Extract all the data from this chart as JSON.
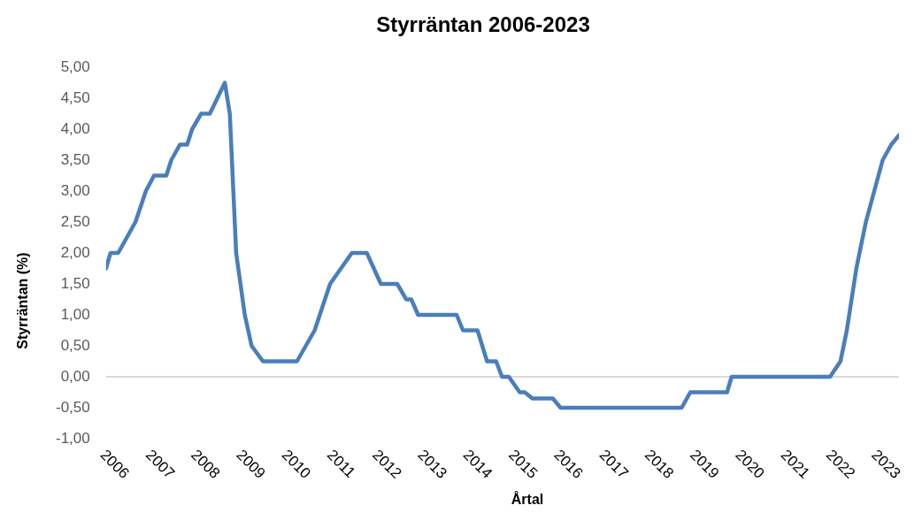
{
  "chart_data": {
    "type": "line",
    "title": "Styrräntan 2006-2023",
    "xlabel": "Årtal",
    "ylabel": "Styrräntan (%)",
    "x": [
      2006.0,
      2006.1,
      2006.27,
      2006.46,
      2006.65,
      2006.88,
      2007.06,
      2007.33,
      2007.44,
      2007.63,
      2007.79,
      2007.9,
      2008.1,
      2008.29,
      2008.62,
      2008.73,
      2008.87,
      2009.06,
      2009.21,
      2009.46,
      2010.21,
      2010.6,
      2010.94,
      2011.42,
      2011.75,
      2012.06,
      2012.42,
      2012.62,
      2012.73,
      2012.88,
      2013.73,
      2013.87,
      2014.19,
      2014.4,
      2014.6,
      2014.73,
      2014.88,
      2015.12,
      2015.23,
      2015.4,
      2015.85,
      2016.02,
      2018.69,
      2018.88,
      2019.69,
      2019.79,
      2021.96,
      2022.19,
      2022.33,
      2022.54,
      2022.75,
      2023.12,
      2023.31,
      2023.48
    ],
    "series": [
      {
        "color": "#4a7ebb",
        "values": [
          1.75,
          2.0,
          2.0,
          2.25,
          2.5,
          3.0,
          3.25,
          3.25,
          3.5,
          3.75,
          3.75,
          4.0,
          4.25,
          4.25,
          4.75,
          4.25,
          2.0,
          1.0,
          0.5,
          0.25,
          0.25,
          0.75,
          1.5,
          2.0,
          2.0,
          1.5,
          1.5,
          1.25,
          1.25,
          1.0,
          1.0,
          0.75,
          0.75,
          0.25,
          0.25,
          0,
          0,
          -0.25,
          -0.25,
          -0.35,
          -0.35,
          -0.5,
          -0.5,
          -0.25,
          -0.25,
          0,
          0,
          0.25,
          0.75,
          1.75,
          2.5,
          3.5,
          3.75,
          3.9
        ]
      }
    ],
    "xlim": [
      2006,
      2023.48
    ],
    "xticks": [
      2006,
      2007,
      2008,
      2009,
      2010,
      2011,
      2012,
      2013,
      2014,
      2015,
      2016,
      2017,
      2018,
      2019,
      2020,
      2021,
      2022,
      2023
    ],
    "ylim": [
      -1,
      5
    ],
    "yticks": [
      {
        "value": -1,
        "label": "-1,00"
      },
      {
        "value": -0.5,
        "label": "-0,50"
      },
      {
        "value": 0,
        "label": "0,00"
      },
      {
        "value": 0.5,
        "label": "0,50"
      },
      {
        "value": 1,
        "label": "1,00"
      },
      {
        "value": 1.5,
        "label": "1,50"
      },
      {
        "value": 2,
        "label": "2,00"
      },
      {
        "value": 2.5,
        "label": "2,50"
      },
      {
        "value": 3,
        "label": "3,00"
      },
      {
        "value": 3.5,
        "label": "3,50"
      },
      {
        "value": 4,
        "label": "4,00"
      },
      {
        "value": 4.5,
        "label": "4,50"
      },
      {
        "value": 5,
        "label": "5,00"
      }
    ],
    "ref_lines": [
      {
        "axis": "y",
        "value": 0,
        "color": "#d9d9d9"
      }
    ],
    "grid": false,
    "legend": false,
    "marker": "none",
    "line_style": "solid"
  }
}
